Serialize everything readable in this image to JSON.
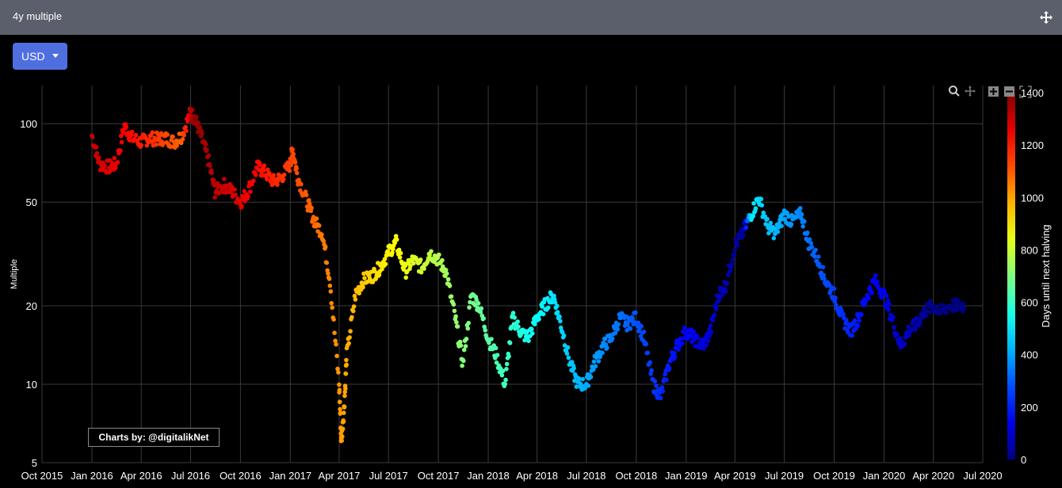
{
  "header": {
    "title": "4y multiple",
    "move_icon": "move-icon"
  },
  "currency_select": {
    "selected": "USD"
  },
  "credit": "Charts by: @digitalikNet",
  "modebar": {
    "icons": [
      "zoom-icon",
      "pan-icon",
      "zoom-in-icon",
      "zoom-out-icon",
      "autoscale-icon"
    ]
  },
  "colors": {
    "header_bg": "#5b5e6b",
    "button_bg": "#4f6fe0",
    "background": "#000000",
    "grid": "#3a3a3a"
  },
  "chart_data": {
    "type": "scatter",
    "ylabel": "Multiple",
    "y_scale": "log",
    "ylim": [
      5,
      140
    ],
    "y_ticks": [
      5,
      10,
      20,
      50,
      100
    ],
    "xlim": [
      "2015-10-01",
      "2020-07-01"
    ],
    "x_ticks": [
      "Oct 2015",
      "Jan 2016",
      "Apr 2016",
      "Jul 2016",
      "Oct 2016",
      "Jan 2017",
      "Apr 2017",
      "Jul 2017",
      "Oct 2017",
      "Jan 2018",
      "Apr 2018",
      "Jul 2018",
      "Oct 2018",
      "Jan 2019",
      "Apr 2019",
      "Jul 2019",
      "Oct 2019",
      "Jan 2020",
      "Apr 2020",
      "Jul 2020"
    ],
    "x_tick_dates": [
      "2015-10-01",
      "2016-01-01",
      "2016-04-01",
      "2016-07-01",
      "2016-10-01",
      "2017-01-01",
      "2017-04-01",
      "2017-07-01",
      "2017-10-01",
      "2018-01-01",
      "2018-04-01",
      "2018-07-01",
      "2018-10-01",
      "2019-01-01",
      "2019-04-01",
      "2019-07-01",
      "2019-10-01",
      "2020-01-01",
      "2020-04-01",
      "2020-07-01"
    ],
    "colorbar": {
      "title": "Days until next halving",
      "range": [
        0,
        1400
      ],
      "ticks": [
        0,
        200,
        400,
        600,
        800,
        1000,
        1200,
        1400
      ]
    },
    "grid": true,
    "series": [
      {
        "x": [
          "2016-01-01",
          "2016-01-15",
          "2016-02-01",
          "2016-02-15",
          "2016-03-01",
          "2016-03-15",
          "2016-04-01",
          "2016-04-15",
          "2016-05-01",
          "2016-05-15",
          "2016-06-01",
          "2016-06-15",
          "2016-07-01",
          "2016-07-09",
          "2016-07-20",
          "2016-08-01",
          "2016-08-15",
          "2016-09-01",
          "2016-09-15",
          "2016-10-01",
          "2016-10-15",
          "2016-11-01",
          "2016-11-15",
          "2016-12-01",
          "2016-12-15",
          "2017-01-01",
          "2017-01-05",
          "2017-01-15",
          "2017-02-01",
          "2017-02-15",
          "2017-03-01",
          "2017-03-15",
          "2017-04-01",
          "2017-04-05",
          "2017-04-10",
          "2017-04-15",
          "2017-05-01",
          "2017-05-15",
          "2017-06-01",
          "2017-06-15",
          "2017-07-01",
          "2017-07-15",
          "2017-08-01",
          "2017-08-15",
          "2017-09-01",
          "2017-09-15",
          "2017-10-01",
          "2017-10-15",
          "2017-11-01",
          "2017-11-15",
          "2017-12-01",
          "2017-12-15",
          "2018-01-01",
          "2018-01-15",
          "2018-02-01",
          "2018-02-15",
          "2018-03-01",
          "2018-03-15",
          "2018-04-01",
          "2018-04-15",
          "2018-05-01",
          "2018-05-15",
          "2018-06-01",
          "2018-06-15",
          "2018-07-01",
          "2018-07-15",
          "2018-08-01",
          "2018-08-15",
          "2018-09-01",
          "2018-09-15",
          "2018-10-01",
          "2018-10-15",
          "2018-11-01",
          "2018-11-15",
          "2018-12-01",
          "2018-12-15",
          "2019-01-01",
          "2019-01-15",
          "2019-02-01",
          "2019-02-15",
          "2019-03-01",
          "2019-03-15",
          "2019-04-01",
          "2019-04-15",
          "2019-05-01",
          "2019-05-15",
          "2019-06-01",
          "2019-06-15",
          "2019-07-01",
          "2019-07-15",
          "2019-08-01",
          "2019-08-15",
          "2019-09-01",
          "2019-09-15",
          "2019-10-01",
          "2019-10-15",
          "2019-11-01",
          "2019-11-15",
          "2019-12-01",
          "2019-12-15",
          "2020-01-01",
          "2020-01-15",
          "2020-02-01",
          "2020-02-15",
          "2020-03-01",
          "2020-03-15",
          "2020-04-01",
          "2020-04-15",
          "2020-05-01",
          "2020-05-15"
        ],
        "y": [
          90,
          70,
          68,
          70,
          98,
          88,
          85,
          88,
          87,
          88,
          85,
          90,
          110,
          105,
          90,
          75,
          55,
          58,
          55,
          50,
          55,
          68,
          65,
          60,
          62,
          70,
          80,
          62,
          50,
          42,
          38,
          25,
          10,
          6,
          8,
          13,
          22,
          25,
          26,
          28,
          32,
          35,
          27,
          30,
          28,
          32,
          30,
          27,
          18,
          12,
          22,
          20,
          15,
          13,
          10,
          18,
          16,
          15,
          18,
          20,
          22,
          17,
          12,
          10,
          10,
          12,
          14,
          15,
          18,
          17,
          18,
          15,
          10,
          9,
          12,
          14,
          16,
          15,
          14,
          16,
          22,
          24,
          34,
          38,
          45,
          52,
          40,
          38,
          45,
          42,
          45,
          35,
          30,
          25,
          22,
          18,
          16,
          18,
          22,
          25,
          22,
          18,
          14,
          16,
          17,
          19,
          20,
          19,
          20,
          20
        ],
        "c": [
          1300,
          1290,
          1270,
          1250,
          1230,
          1210,
          1190,
          1170,
          1150,
          1130,
          1110,
          1090,
          1300,
          1380,
          1360,
          1340,
          1320,
          1300,
          1280,
          1260,
          1240,
          1220,
          1200,
          1180,
          1160,
          1140,
          1130,
          1120,
          1100,
          1080,
          1060,
          1040,
          1020,
          1010,
          1000,
          990,
          970,
          950,
          930,
          910,
          890,
          870,
          850,
          830,
          810,
          790,
          770,
          750,
          730,
          710,
          690,
          670,
          650,
          630,
          610,
          590,
          570,
          550,
          530,
          510,
          490,
          470,
          450,
          430,
          410,
          390,
          370,
          350,
          330,
          310,
          290,
          270,
          250,
          230,
          210,
          190,
          170,
          150,
          130,
          110,
          90,
          70,
          50,
          30,
          500,
          480,
          440,
          430,
          400,
          380,
          360,
          330,
          300,
          280,
          260,
          240,
          220,
          200,
          180,
          160,
          140,
          120,
          100,
          80,
          60,
          40,
          20,
          10,
          5,
          3
        ]
      }
    ]
  }
}
